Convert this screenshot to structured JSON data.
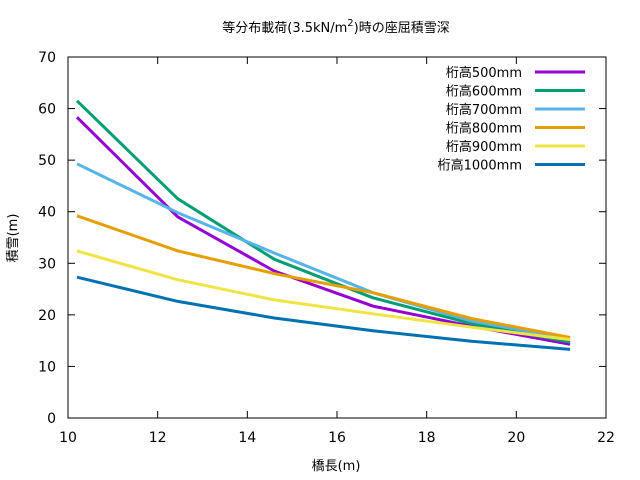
{
  "chart_data": {
    "type": "line",
    "title": "等分布載荷(3.5kN/m²)時の座屈積雪深",
    "title_main": "等分布載荷(3.5kN/m",
    "title_sup": "2",
    "title_tail": ")時の座屈積雪深",
    "xlabel": "橋長(m)",
    "ylabel": "積雪(m)",
    "xlim": [
      10,
      22
    ],
    "ylim": [
      0,
      70
    ],
    "xticks": [
      "10",
      "12",
      "14",
      "16",
      "18",
      "20",
      "22"
    ],
    "yticks": [
      "0",
      "10",
      "20",
      "30",
      "40",
      "50",
      "60",
      "70"
    ],
    "grid": false,
    "legend_position": "top-right",
    "series": [
      {
        "name": "桁高500mm",
        "color": "#9400d3",
        "x": [
          10.2,
          12.45,
          14.6,
          16.8,
          19.0,
          21.2
        ],
        "y": [
          58.3,
          39.0,
          28.5,
          21.7,
          17.8,
          14.3
        ]
      },
      {
        "name": "桁高600mm",
        "color": "#009e73",
        "x": [
          10.2,
          12.45,
          14.6,
          16.8,
          19.0,
          21.2
        ],
        "y": [
          61.5,
          42.5,
          30.8,
          23.3,
          18.3,
          14.7
        ]
      },
      {
        "name": "桁高700mm",
        "color": "#56b4e9",
        "x": [
          10.2,
          12.45,
          14.6,
          16.8,
          19.0,
          21.2
        ],
        "y": [
          49.3,
          39.8,
          32.0,
          24.3,
          18.8,
          15.3
        ]
      },
      {
        "name": "桁高800mm",
        "color": "#e69f00",
        "x": [
          10.2,
          12.45,
          14.6,
          16.8,
          19.0,
          21.2
        ],
        "y": [
          39.2,
          32.4,
          28.0,
          24.3,
          19.3,
          15.6
        ]
      },
      {
        "name": "桁高900mm",
        "color": "#f0e442",
        "x": [
          10.2,
          12.45,
          14.6,
          16.8,
          19.0,
          21.2
        ],
        "y": [
          32.4,
          26.8,
          22.9,
          20.2,
          17.6,
          15.2
        ]
      },
      {
        "name": "桁高1000mm",
        "color": "#0072b2",
        "x": [
          10.2,
          12.45,
          14.6,
          16.8,
          19.0,
          21.2
        ],
        "y": [
          27.3,
          22.6,
          19.4,
          16.9,
          14.9,
          13.3
        ]
      }
    ]
  }
}
